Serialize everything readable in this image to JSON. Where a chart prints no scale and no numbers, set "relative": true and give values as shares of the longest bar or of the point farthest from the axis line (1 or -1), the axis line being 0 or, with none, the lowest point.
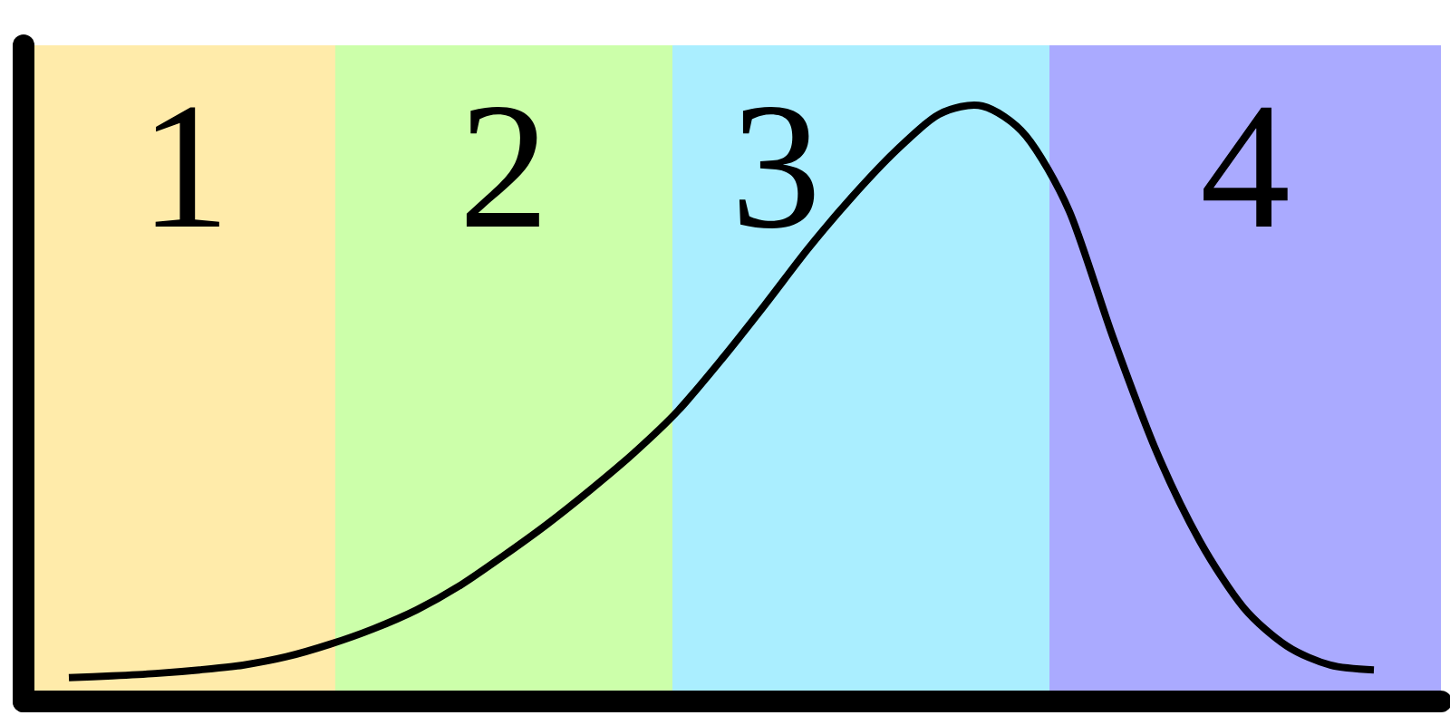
{
  "chart_data": {
    "type": "line",
    "relative": true,
    "categories": [
      null,
      null,
      null,
      null,
      null,
      null,
      null,
      null,
      null,
      null,
      null,
      null,
      null,
      null,
      null,
      null,
      null,
      null,
      null,
      null,
      null,
      null,
      null,
      null,
      null,
      null,
      null,
      null,
      null,
      null,
      null
    ],
    "series": [
      {
        "color": "#000000",
        "values": [
          0.04,
          0.043,
          0.047,
          0.053,
          0.061,
          0.075,
          0.096,
          0.122,
          0.154,
          0.195,
          0.245,
          0.298,
          0.356,
          0.418,
          0.488,
          0.574,
          0.666,
          0.761,
          0.847,
          0.924,
          0.986,
          1,
          0.95,
          0.823,
          0.612,
          0.42,
          0.269,
          0.158,
          0.093,
          0.061,
          0.053
        ]
      }
    ],
    "annotations": [
      "1",
      "2",
      "3",
      "4"
    ]
  }
}
